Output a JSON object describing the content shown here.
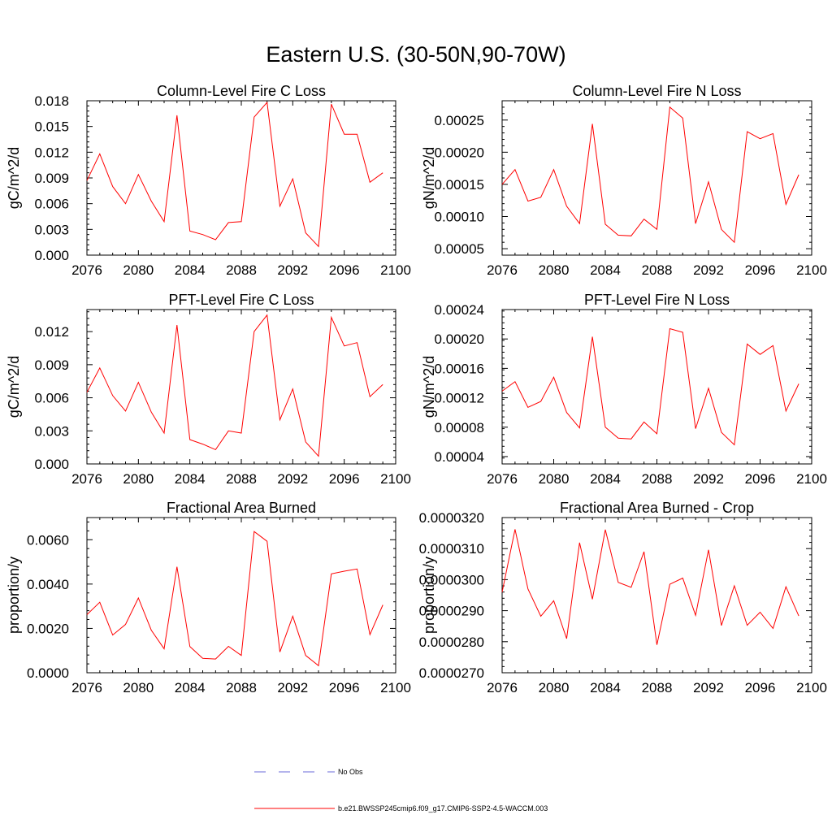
{
  "figure": {
    "title": "Eastern U.S. (30-50N,90-70W)"
  },
  "legend": [
    {
      "label": "No Obs",
      "color": "#6a6ad8",
      "dash": true
    },
    {
      "label": "b.e21.BWSSP245cmip6.f09_g17.CMIP6-SSP2-4.5-WACCM.003",
      "color": "#ff0000",
      "dash": false
    }
  ],
  "colors": {
    "series": "#ff0000",
    "axis": "#000000"
  },
  "chart_data": [
    {
      "type": "line",
      "title": "Column-Level Fire C Loss",
      "ylabel": "gC/m^2/d",
      "xlim": [
        2076,
        2100
      ],
      "ylim": [
        0.0,
        0.018
      ],
      "xticks": [
        "2076",
        "2080",
        "2084",
        "2088",
        "2092",
        "2096",
        "2100"
      ],
      "yticks": [
        "0.000",
        "0.003",
        "0.006",
        "0.009",
        "0.012",
        "0.015",
        "0.018"
      ],
      "x": [
        2076,
        2077,
        2078,
        2079,
        2080,
        2081,
        2082,
        2083,
        2084,
        2085,
        2086,
        2087,
        2088,
        2089,
        2090,
        2091,
        2092,
        2093,
        2094,
        2095,
        2096,
        2097,
        2098,
        2099
      ],
      "series": [
        {
          "values": [
            0.0087,
            0.0118,
            0.008,
            0.006,
            0.0094,
            0.0063,
            0.0039,
            0.0163,
            0.0028,
            0.0024,
            0.0018,
            0.0038,
            0.0039,
            0.0161,
            0.0178,
            0.0057,
            0.0089,
            0.0026,
            0.001,
            0.0176,
            0.0141,
            0.0141,
            0.0085,
            0.0096
          ]
        }
      ]
    },
    {
      "type": "line",
      "title": "Column-Level Fire N Loss",
      "ylabel": "gN/m^2/d",
      "xlim": [
        2076,
        2100
      ],
      "ylim": [
        4e-05,
        0.00028
      ],
      "xticks": [
        "2076",
        "2080",
        "2084",
        "2088",
        "2092",
        "2096",
        "2100"
      ],
      "yticks": [
        "0.00005",
        "0.00010",
        "0.00015",
        "0.00020",
        "0.00025"
      ],
      "x": [
        2076,
        2077,
        2078,
        2079,
        2080,
        2081,
        2082,
        2083,
        2084,
        2085,
        2086,
        2087,
        2088,
        2089,
        2090,
        2091,
        2092,
        2093,
        2094,
        2095,
        2096,
        2097,
        2098,
        2099
      ],
      "series": [
        {
          "values": [
            0.00015,
            0.000173,
            0.000124,
            0.00013,
            0.000173,
            0.000116,
            8.9e-05,
            0.000244,
            8.8e-05,
            7.1e-05,
            7e-05,
            9.6e-05,
            8e-05,
            0.00027,
            0.000253,
            8.9e-05,
            0.000154,
            8e-05,
            6e-05,
            0.000232,
            0.000221,
            0.000229,
            0.000119,
            0.000165
          ]
        }
      ]
    },
    {
      "type": "line",
      "title": "PFT-Level Fire C Loss",
      "ylabel": "gC/m^2/d",
      "xlim": [
        2076,
        2100
      ],
      "ylim": [
        0.0,
        0.014
      ],
      "xticks": [
        "2076",
        "2080",
        "2084",
        "2088",
        "2092",
        "2096",
        "2100"
      ],
      "yticks": [
        "0.000",
        "0.003",
        "0.006",
        "0.009",
        "0.012"
      ],
      "x": [
        2076,
        2077,
        2078,
        2079,
        2080,
        2081,
        2082,
        2083,
        2084,
        2085,
        2086,
        2087,
        2088,
        2089,
        2090,
        2091,
        2092,
        2093,
        2094,
        2095,
        2096,
        2097,
        2098,
        2099
      ],
      "series": [
        {
          "values": [
            0.0065,
            0.0087,
            0.0062,
            0.0048,
            0.0074,
            0.0047,
            0.0028,
            0.0126,
            0.0022,
            0.0018,
            0.0013,
            0.003,
            0.0028,
            0.012,
            0.0135,
            0.004,
            0.0068,
            0.002,
            0.0007,
            0.0133,
            0.0107,
            0.011,
            0.0061,
            0.0072
          ]
        }
      ]
    },
    {
      "type": "line",
      "title": "PFT-Level Fire N Loss",
      "ylabel": "gN/m^2/d",
      "xlim": [
        2076,
        2100
      ],
      "ylim": [
        3e-05,
        0.00024
      ],
      "xticks": [
        "2076",
        "2080",
        "2084",
        "2088",
        "2092",
        "2096",
        "2100"
      ],
      "yticks": [
        "0.00004",
        "0.00008",
        "0.00012",
        "0.00016",
        "0.00020",
        "0.00024"
      ],
      "x": [
        2076,
        2077,
        2078,
        2079,
        2080,
        2081,
        2082,
        2083,
        2084,
        2085,
        2086,
        2087,
        2088,
        2089,
        2090,
        2091,
        2092,
        2093,
        2094,
        2095,
        2096,
        2097,
        2098,
        2099
      ],
      "series": [
        {
          "values": [
            0.000129,
            0.000142,
            0.000107,
            0.000115,
            0.000148,
            0.0001,
            7.9e-05,
            0.000203,
            8e-05,
            6.5e-05,
            6.4e-05,
            8.7e-05,
            7.1e-05,
            0.000214,
            0.000209,
            7.8e-05,
            0.000133,
            7.3e-05,
            5.6e-05,
            0.000193,
            0.000179,
            0.000191,
            0.000102,
            0.000139
          ]
        }
      ]
    },
    {
      "type": "line",
      "title": "Fractional Area Burned",
      "ylabel": "proportion/y",
      "xlim": [
        2076,
        2100
      ],
      "ylim": [
        0.0,
        0.007
      ],
      "xticks": [
        "2076",
        "2080",
        "2084",
        "2088",
        "2092",
        "2096",
        "2100"
      ],
      "yticks": [
        "0.0000",
        "0.0020",
        "0.0040",
        "0.0060"
      ],
      "x": [
        2076,
        2077,
        2078,
        2079,
        2080,
        2081,
        2082,
        2083,
        2084,
        2085,
        2086,
        2087,
        2088,
        2089,
        2090,
        2091,
        2092,
        2093,
        2094,
        2095,
        2096,
        2097,
        2098,
        2099
      ],
      "series": [
        {
          "values": [
            0.00262,
            0.00318,
            0.0017,
            0.00218,
            0.00337,
            0.00192,
            0.00108,
            0.00478,
            0.00118,
            0.00065,
            0.00062,
            0.00119,
            0.00078,
            0.00637,
            0.00593,
            0.00094,
            0.00255,
            0.00078,
            0.00032,
            0.00446,
            0.00458,
            0.00468,
            0.00172,
            0.00306
          ]
        }
      ]
    },
    {
      "type": "line",
      "title": "Fractional Area Burned - Crop",
      "ylabel": "proportion/y",
      "xlim": [
        2076,
        2100
      ],
      "ylim": [
        2.7e-05,
        3.2e-05
      ],
      "xticks": [
        "2076",
        "2080",
        "2084",
        "2088",
        "2092",
        "2096",
        "2100"
      ],
      "yticks": [
        "0.0000270",
        "0.0000280",
        "0.0000290",
        "0.0000300",
        "0.0000310",
        "0.0000320"
      ],
      "x": [
        2076,
        2077,
        2078,
        2079,
        2080,
        2081,
        2082,
        2083,
        2084,
        2085,
        2086,
        2087,
        2088,
        2089,
        2090,
        2091,
        2092,
        2093,
        2094,
        2095,
        2096,
        2097,
        2098,
        2099
      ],
      "series": [
        {
          "values": [
            2.96e-05,
            3.162e-05,
            2.97e-05,
            2.882e-05,
            2.932e-05,
            2.81e-05,
            3.119e-05,
            2.937e-05,
            3.161e-05,
            2.991e-05,
            2.975e-05,
            3.09e-05,
            2.79e-05,
            2.985e-05,
            3.005e-05,
            2.885e-05,
            3.096e-05,
            2.852e-05,
            2.98e-05,
            2.853e-05,
            2.895e-05,
            2.843e-05,
            2.977e-05,
            2.883e-05
          ]
        }
      ]
    }
  ]
}
